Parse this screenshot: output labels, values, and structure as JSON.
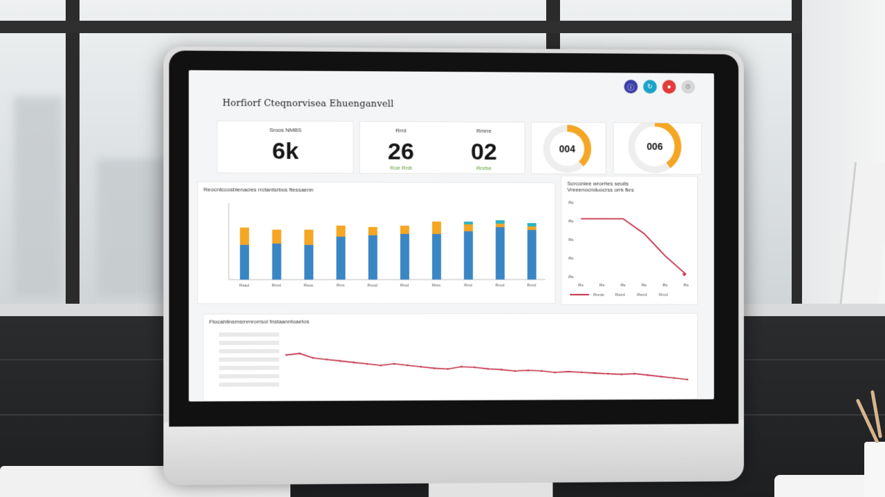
{
  "dashboard": {
    "title": "Horfiorf Cteqnorvisea Ehuenganvell",
    "header_icons": [
      {
        "name": "info-icon",
        "color": "#3b3ea8"
      },
      {
        "name": "refresh-icon",
        "color": "#1aa3c9"
      },
      {
        "name": "alert-icon",
        "color": "#e13b3b"
      },
      {
        "name": "settings-icon",
        "color": "#d7d7d7"
      }
    ],
    "kpis": [
      {
        "label": "Sroos NMBS",
        "value": "6k",
        "sub": ""
      },
      {
        "label": "Rrrd",
        "value": "26",
        "sub": "Roir Rrdl"
      },
      {
        "label": "Rmrre",
        "value": "02",
        "sub": "Rnrbe"
      }
    ],
    "gauges": [
      {
        "value_text": "004",
        "fraction": 0.38
      },
      {
        "value_text": "006",
        "fraction": 0.4
      }
    ],
    "bar_panel": {
      "title": "Reocntccosblenacies rrctantsrbos ftessaenn"
    },
    "line_panel": {
      "title": "Scrconiee wrorrtes seuits\nVreeenocnduocrss orrk fkrs"
    },
    "trend_panel": {
      "title": "Ftocahlinsmsrnrnrorrsol fnstaanntoaetos"
    },
    "colors": {
      "bar_blue": "#3a86c4",
      "bar_orange": "#f5a623",
      "bar_teal": "#2bb3c0",
      "line_red": "#c0283f",
      "gauge_orange": "#f5a623",
      "gauge_track": "#eeeeee"
    }
  },
  "chart_data": [
    {
      "type": "bar",
      "categories": [
        "Rsad",
        "Rnrd",
        "Rsos",
        "Rrrs",
        "Roud",
        "Rrsd",
        "Rres",
        "Rrrd",
        "Rrod",
        "Rnrd"
      ],
      "series": [
        {
          "values": [
            50,
            52,
            50,
            62,
            64,
            66,
            66,
            70,
            76,
            72
          ]
        },
        {
          "values": [
            25,
            20,
            22,
            16,
            12,
            12,
            18,
            10,
            5,
            5
          ]
        },
        {
          "values": [
            0,
            0,
            0,
            0,
            0,
            0,
            0,
            4,
            5,
            5
          ]
        }
      ],
      "ytick_labels": [
        "",
        "",
        "",
        "",
        ""
      ],
      "ylim": [
        0,
        110
      ]
    },
    {
      "type": "line",
      "x": [
        0,
        1,
        2,
        3,
        4,
        5
      ],
      "series": [
        {
          "values": [
            8,
            8,
            8,
            6,
            3,
            0.5
          ]
        }
      ],
      "ylim": [
        0,
        10
      ],
      "ytick_labels": [
        "Rs",
        "Rs",
        "Rs",
        "Rs",
        "Rs"
      ],
      "xtick_labels": [
        "Rs",
        "Rs",
        "Rs",
        "Rs",
        "Rs",
        "Rs"
      ],
      "legend": [
        "Rreds",
        "Rstrd",
        "Rsrrd",
        "Rrod"
      ]
    },
    {
      "type": "line",
      "series": [
        {
          "values": [
            74,
            76,
            70,
            68,
            66,
            64,
            62,
            60,
            62,
            60,
            58,
            56,
            55,
            58,
            57,
            55,
            54,
            52,
            53,
            52,
            50,
            51,
            50,
            49,
            48,
            47,
            48,
            46,
            44,
            42,
            40
          ]
        }
      ],
      "ylim": [
        0,
        100
      ]
    }
  ]
}
